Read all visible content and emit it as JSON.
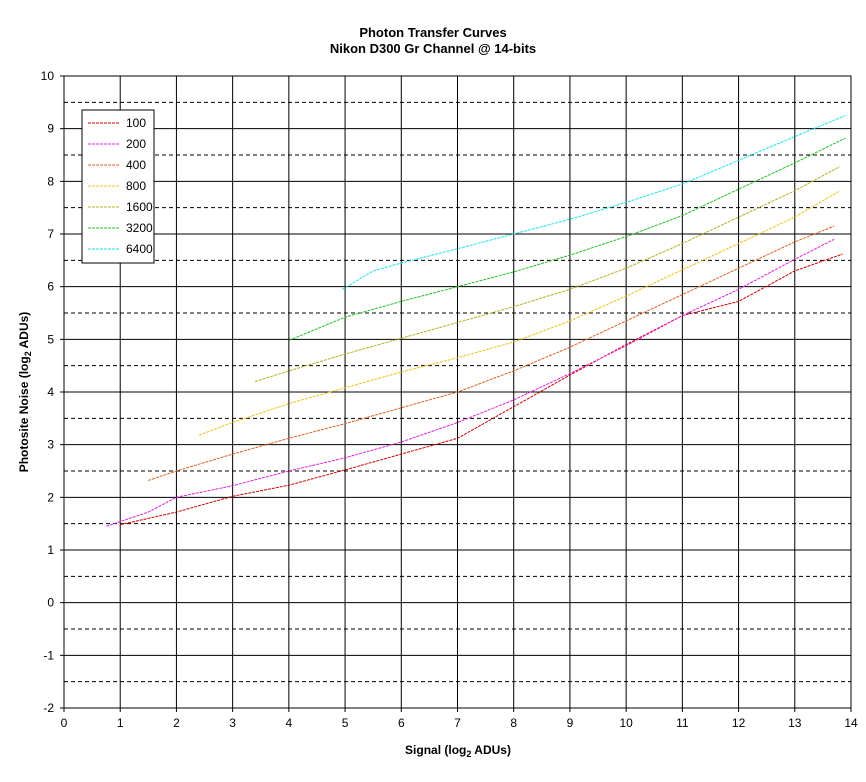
{
  "chart_data": {
    "type": "line",
    "title": "Photon Transfer Curves",
    "subtitle": "Nikon D300 Gr Channel @ 14-bits",
    "xlabel": {
      "prefix": "Signal (log",
      "sub": "2",
      "suffix": " ADUs)"
    },
    "ylabel": {
      "prefix": "Photosite Noise (log",
      "sub": "2",
      "suffix": " ADUs)"
    },
    "xlim": [
      0,
      14
    ],
    "ylim": [
      -2,
      10
    ],
    "x_ticks": [
      "0",
      "1",
      "2",
      "3",
      "4",
      "5",
      "6",
      "7",
      "8",
      "9",
      "10",
      "11",
      "12",
      "13",
      "14"
    ],
    "y_ticks": [
      "-2",
      "-1",
      "0",
      "1",
      "2",
      "3",
      "4",
      "5",
      "6",
      "7",
      "8",
      "9",
      "10"
    ],
    "grid": {
      "major_vertical": true,
      "major_horizontal": true,
      "minor_horizontal_dashed": true
    },
    "legend_position": "top-left",
    "series": [
      {
        "name": "100",
        "color": "#cc0000",
        "x": [
          1.0,
          2.0,
          3.0,
          4.0,
          5.0,
          6.0,
          7.0,
          8.0,
          9.0,
          10.0,
          11.0,
          12.0,
          13.0,
          13.85
        ],
        "y": [
          1.48,
          1.72,
          2.02,
          2.23,
          2.52,
          2.82,
          3.12,
          3.72,
          4.32,
          4.9,
          5.45,
          5.72,
          6.3,
          6.62
        ]
      },
      {
        "name": "200",
        "color": "#e020e0",
        "x": [
          0.75,
          1.5,
          2.0,
          3.0,
          4.0,
          5.0,
          6.0,
          7.0,
          8.0,
          9.0,
          10.0,
          11.0,
          12.0,
          13.0,
          13.7
        ],
        "y": [
          1.45,
          1.72,
          2.0,
          2.22,
          2.5,
          2.75,
          3.05,
          3.42,
          3.85,
          4.35,
          4.88,
          5.45,
          5.95,
          6.52,
          6.9
        ]
      },
      {
        "name": "400",
        "color": "#e06020",
        "x": [
          1.5,
          2.0,
          3.0,
          4.0,
          5.0,
          6.0,
          7.0,
          8.0,
          9.0,
          10.0,
          11.0,
          12.0,
          13.0,
          13.7
        ],
        "y": [
          2.32,
          2.5,
          2.82,
          3.12,
          3.4,
          3.7,
          4.0,
          4.4,
          4.85,
          5.35,
          5.85,
          6.35,
          6.85,
          7.15
        ]
      },
      {
        "name": "800",
        "color": "#f0c020",
        "x": [
          2.4,
          3.0,
          4.0,
          5.0,
          6.0,
          7.0,
          8.0,
          9.0,
          10.0,
          11.0,
          12.0,
          13.0,
          13.8
        ],
        "y": [
          3.18,
          3.42,
          3.78,
          4.08,
          4.38,
          4.65,
          4.95,
          5.35,
          5.82,
          6.32,
          6.82,
          7.32,
          7.82
        ]
      },
      {
        "name": "1600",
        "color": "#b0b020",
        "x": [
          3.4,
          4.0,
          5.0,
          6.0,
          7.0,
          8.0,
          9.0,
          10.0,
          11.0,
          12.0,
          13.0,
          13.8
        ],
        "y": [
          4.2,
          4.4,
          4.72,
          5.02,
          5.32,
          5.62,
          5.95,
          6.35,
          6.82,
          7.32,
          7.82,
          8.28
        ]
      },
      {
        "name": "3200",
        "color": "#20c020",
        "x": [
          4.0,
          5.0,
          6.0,
          7.0,
          8.0,
          9.0,
          10.0,
          11.0,
          12.0,
          13.0,
          13.9
        ],
        "y": [
          4.98,
          5.42,
          5.72,
          6.0,
          6.28,
          6.6,
          6.95,
          7.35,
          7.85,
          8.35,
          8.82
        ]
      },
      {
        "name": "6400",
        "color": "#20e0f0",
        "x": [
          4.95,
          5.5,
          6.0,
          7.0,
          8.0,
          9.0,
          10.0,
          11.0,
          12.0,
          13.0,
          13.9
        ],
        "y": [
          5.95,
          6.3,
          6.45,
          6.72,
          7.0,
          7.28,
          7.6,
          7.95,
          8.4,
          8.85,
          9.25
        ]
      }
    ]
  }
}
